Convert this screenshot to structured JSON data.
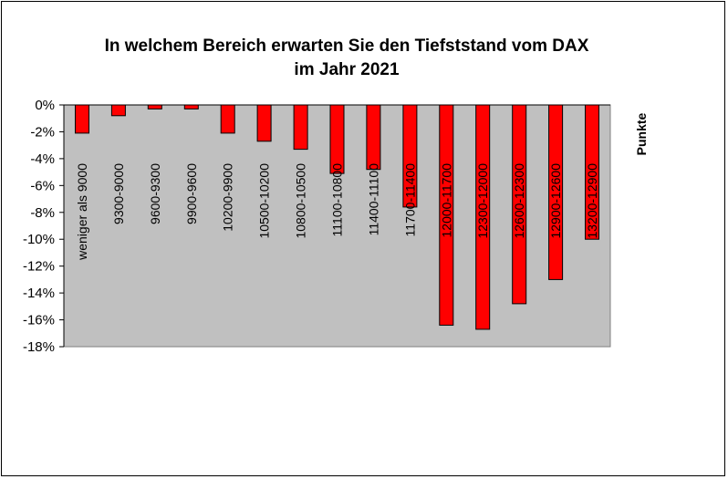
{
  "chart_data": {
    "type": "bar",
    "title_line1": "In welchem Bereich erwarten Sie den Tiefststand vom DAX",
    "title_line2": "im Jahr 2021",
    "xlabel": "Punkte",
    "ylabel": "",
    "ylim": [
      -18,
      0
    ],
    "yticks": [
      0,
      -2,
      -4,
      -6,
      -8,
      -10,
      -12,
      -14,
      -16,
      -18
    ],
    "ytick_labels": [
      "0%",
      "-2%",
      "-4%",
      "-6%",
      "-8%",
      "-10%",
      "-12%",
      "-14%",
      "-16%",
      "-18%"
    ],
    "categories": [
      "weniger als 9000",
      "9300-9000",
      "9600-9300",
      "9900-9600",
      "10200-9900",
      "10500-10200",
      "10800-10500",
      "11100-10800",
      "11400-11100",
      "11700-11400",
      "12000-11700",
      "12300-12000",
      "12600-12300",
      "12900-12600",
      "13200-12900"
    ],
    "values": [
      -2.1,
      -0.8,
      -0.3,
      -0.3,
      -2.1,
      -2.7,
      -3.3,
      -5.1,
      -4.8,
      -7.6,
      -16.4,
      -16.7,
      -14.8,
      -13.0,
      -10.0
    ],
    "bar_color": "#ff0000",
    "plot_background": "#c0c0c0",
    "grid": false,
    "legend": "none"
  }
}
